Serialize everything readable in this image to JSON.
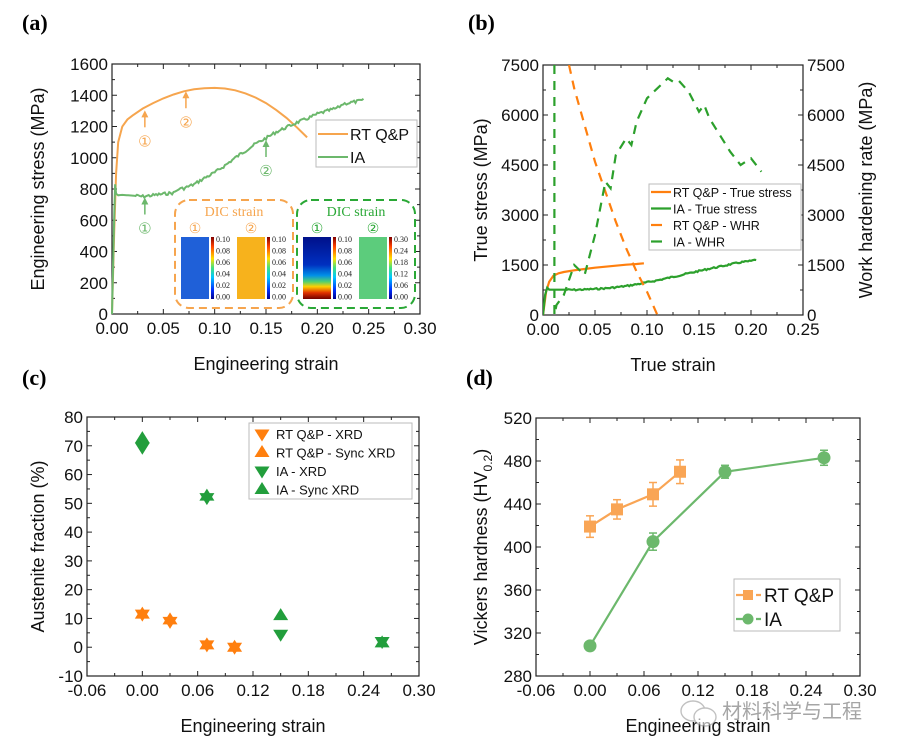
{
  "colors": {
    "a_orange": "#f6a54e",
    "a_green": "#6cb86c",
    "b_orange": "#ff7f0e",
    "b_green": "#2ca02c",
    "c_orange": "#ff7f0e",
    "c_green": "#229e3c",
    "d_orange": "#f9a555",
    "d_green": "#6cb86c",
    "axis": "#222222"
  },
  "watermark": "材料科学与工程",
  "chart_data": [
    {
      "id": "a",
      "panel_label": "(a)",
      "type": "line",
      "xlabel": "Engineering strain",
      "ylabel": "Engineering stress (MPa)",
      "xlim": [
        0,
        0.3
      ],
      "ylim": [
        0,
        1600
      ],
      "xticks": [
        "0.00",
        "0.05",
        "0.10",
        "0.15",
        "0.20",
        "0.25",
        "0.30"
      ],
      "yticks": [
        "0",
        "200",
        "400",
        "600",
        "800",
        "1000",
        "1200",
        "1400",
        "1600"
      ],
      "legend": {
        "position": "right",
        "entries": [
          "RT Q&P",
          "IA"
        ]
      },
      "series": [
        {
          "name": "RT Q&P",
          "x": [
            0,
            0.002,
            0.004,
            0.006,
            0.01,
            0.015,
            0.02,
            0.03,
            0.04,
            0.05,
            0.06,
            0.07,
            0.08,
            0.09,
            0.1,
            0.11,
            0.12,
            0.13,
            0.14,
            0.15,
            0.16,
            0.17,
            0.18,
            0.19
          ],
          "y": [
            0,
            500,
            900,
            1100,
            1200,
            1245,
            1270,
            1315,
            1350,
            1380,
            1405,
            1425,
            1438,
            1445,
            1447,
            1443,
            1432,
            1412,
            1385,
            1350,
            1305,
            1255,
            1195,
            1130
          ]
        },
        {
          "name": "IA",
          "x": [
            0,
            0.002,
            0.003,
            0.004,
            0.006,
            0.01,
            0.02,
            0.03,
            0.04,
            0.05,
            0.06,
            0.065,
            0.07,
            0.08,
            0.09,
            0.1,
            0.11,
            0.12,
            0.13,
            0.14,
            0.15,
            0.16,
            0.17,
            0.18,
            0.19,
            0.2,
            0.21,
            0.22,
            0.225,
            0.23,
            0.24,
            0.245
          ],
          "y": [
            0,
            600,
            830,
            770,
            760,
            762,
            758,
            752,
            760,
            768,
            775,
            800,
            805,
            830,
            870,
            905,
            950,
            1000,
            1045,
            1090,
            1125,
            1165,
            1195,
            1225,
            1250,
            1280,
            1300,
            1320,
            1345,
            1350,
            1362,
            1368
          ]
        }
      ],
      "annotations": [
        {
          "label": "①",
          "series": "RT Q&P",
          "x": 0.032,
          "y": 1310
        },
        {
          "label": "②",
          "series": "RT Q&P",
          "x": 0.072,
          "y": 1432
        },
        {
          "label": "①",
          "series": "IA",
          "x": 0.032,
          "y": 752
        },
        {
          "label": "②",
          "series": "IA",
          "x": 0.15,
          "y": 1120
        }
      ],
      "insets": [
        {
          "title": "DIC strain",
          "color": "orange",
          "maps": [
            {
              "label": "①",
              "colorbar": [
                "0.10",
                "0.08",
                "0.06",
                "0.04",
                "0.02",
                "0.00"
              ],
              "field": "uniform-low"
            },
            {
              "label": "②",
              "colorbar": [
                "0.10",
                "0.08",
                "0.06",
                "0.04",
                "0.02",
                "0.00"
              ],
              "field": "uniform-high"
            }
          ]
        },
        {
          "title": "DIC strain",
          "color": "green",
          "maps": [
            {
              "label": "①",
              "colorbar": [
                "0.10",
                "0.08",
                "0.06",
                "0.04",
                "0.02",
                "0.00"
              ],
              "field": "band-bottom"
            },
            {
              "label": "②",
              "colorbar": [
                "0.30",
                "0.24",
                "0.18",
                "0.12",
                "0.06",
                "0.00"
              ],
              "field": "uniform-mid"
            }
          ]
        }
      ]
    },
    {
      "id": "b",
      "panel_label": "(b)",
      "type": "line",
      "xlabel": "True strain",
      "ylabel": "True stress (MPa)",
      "ylabel_right": "Work hardening rate (MPa)",
      "xlim": [
        0,
        0.25
      ],
      "ylim": [
        0,
        7500
      ],
      "ylim_right": [
        0,
        7500
      ],
      "xticks": [
        "0.00",
        "0.05",
        "0.10",
        "0.15",
        "0.20",
        "0.25"
      ],
      "yticks": [
        "0",
        "1500",
        "3000",
        "4500",
        "6000",
        "7500"
      ],
      "yticks_right": [
        "0",
        "1500",
        "3000",
        "4500",
        "6000",
        "7500"
      ],
      "legend": {
        "position": "center-right",
        "entries": [
          "RT Q&P - True stress",
          "IA - True stress",
          "RT Q&P - WHR",
          "IA - WHR"
        ]
      },
      "series": [
        {
          "name": "RT Q&P - True stress",
          "style": "solid",
          "color": "orange",
          "x": [
            0,
            0.003,
            0.006,
            0.01,
            0.015,
            0.02,
            0.03,
            0.04,
            0.05,
            0.06,
            0.07,
            0.08,
            0.09,
            0.097
          ],
          "y": [
            0,
            700,
            1000,
            1180,
            1250,
            1290,
            1340,
            1380,
            1420,
            1450,
            1480,
            1510,
            1530,
            1550
          ]
        },
        {
          "name": "IA - True stress",
          "style": "solid",
          "color": "green",
          "x": [
            0,
            0.002,
            0.004,
            0.006,
            0.01,
            0.02,
            0.03,
            0.04,
            0.05,
            0.06,
            0.07,
            0.08,
            0.09,
            0.1,
            0.11,
            0.12,
            0.13,
            0.14,
            0.15,
            0.16,
            0.17,
            0.18,
            0.19,
            0.2,
            0.205
          ],
          "y": [
            0,
            600,
            820,
            760,
            760,
            760,
            755,
            765,
            780,
            800,
            830,
            870,
            920,
            980,
            1040,
            1110,
            1180,
            1250,
            1320,
            1390,
            1450,
            1520,
            1580,
            1620,
            1660
          ]
        },
        {
          "name": "RT Q&P - WHR",
          "style": "dashed",
          "color": "orange",
          "x": [
            0.025,
            0.03,
            0.04,
            0.05,
            0.06,
            0.07,
            0.08,
            0.09,
            0.1,
            0.11
          ],
          "y": [
            7500,
            6800,
            5700,
            4600,
            3700,
            2800,
            2000,
            1300,
            700,
            0
          ]
        },
        {
          "name": "IA - WHR",
          "style": "dashed",
          "color": "green",
          "x": [
            0.011,
            0.011,
            0.013,
            0.02,
            0.03,
            0.04,
            0.05,
            0.055,
            0.06,
            0.065,
            0.07,
            0.08,
            0.085,
            0.09,
            0.1,
            0.11,
            0.12,
            0.125,
            0.13,
            0.14,
            0.15,
            0.155,
            0.16,
            0.17,
            0.18,
            0.19,
            0.2,
            0.21
          ],
          "y": [
            7500,
            0,
            300,
            600,
            1500,
            1200,
            2400,
            3200,
            4000,
            3800,
            4800,
            5300,
            5100,
            5800,
            6500,
            6800,
            7100,
            7000,
            7050,
            6700,
            6100,
            6300,
            5900,
            5400,
            4900,
            4500,
            4700,
            4300
          ]
        }
      ]
    },
    {
      "id": "c",
      "panel_label": "(c)",
      "type": "scatter",
      "xlabel": "Engineering strain",
      "ylabel": "Austenite fraction (%)",
      "xlim": [
        -0.06,
        0.3
      ],
      "ylim": [
        -10,
        80
      ],
      "xticks": [
        "-0.06",
        "0.00",
        "0.06",
        "0.12",
        "0.18",
        "0.24",
        "0.30"
      ],
      "yticks": [
        "-10",
        "0",
        "10",
        "20",
        "30",
        "40",
        "50",
        "60",
        "70",
        "80"
      ],
      "legend": {
        "position": "top-right",
        "entries": [
          "RT Q&P - XRD",
          "RT Q&P - Sync XRD",
          "IA - XRD",
          "IA - Sync XRD"
        ]
      },
      "series": [
        {
          "name": "RT Q&P - XRD",
          "marker": "triangle-down",
          "color": "orange",
          "x": [
            0.0,
            0.03,
            0.07,
            0.1
          ],
          "y": [
            11.5,
            9.0,
            0.8,
            0.0
          ]
        },
        {
          "name": "RT Q&P - Sync XRD",
          "marker": "triangle-up",
          "color": "orange",
          "x": [
            0.0,
            0.03,
            0.07,
            0.1
          ],
          "y": [
            11.5,
            9.5,
            0.8,
            0.0
          ]
        },
        {
          "name": "IA - XRD",
          "marker": "triangle-down",
          "color": "green",
          "x": [
            0.0,
            0.07,
            0.15,
            0.26
          ],
          "y": [
            69.5,
            52.0,
            4.5,
            2.0
          ]
        },
        {
          "name": "IA - Sync XRD",
          "marker": "triangle-up",
          "color": "green",
          "x": [
            0.0,
            0.07,
            0.15,
            0.26
          ],
          "y": [
            72.5,
            52.5,
            11.0,
            1.5
          ]
        }
      ]
    },
    {
      "id": "d",
      "panel_label": "(d)",
      "type": "line",
      "xlabel": "Engineering strain",
      "ylabel": "Vickers hardness (HV",
      "ylabel_sub": "0.2",
      "ylabel_end": ")",
      "xlim": [
        -0.06,
        0.3
      ],
      "ylim": [
        280,
        520
      ],
      "xticks": [
        "-0.06",
        "0.00",
        "0.06",
        "0.12",
        "0.18",
        "0.24",
        "0.30"
      ],
      "yticks": [
        "280",
        "320",
        "360",
        "400",
        "440",
        "480",
        "520"
      ],
      "legend": {
        "position": "bottom-right",
        "entries": [
          "RT Q&P",
          "IA"
        ]
      },
      "series": [
        {
          "name": "RT Q&P",
          "marker": "square",
          "color": "orange",
          "x": [
            0.0,
            0.03,
            0.07,
            0.1
          ],
          "y": [
            419,
            435,
            449,
            470
          ],
          "err": [
            10,
            9,
            11,
            11
          ]
        },
        {
          "name": "IA",
          "marker": "circle",
          "color": "green",
          "x": [
            0.0,
            0.07,
            0.15,
            0.26
          ],
          "y": [
            308,
            405,
            470,
            483
          ],
          "err": [
            2,
            8,
            6,
            7
          ]
        }
      ]
    }
  ]
}
